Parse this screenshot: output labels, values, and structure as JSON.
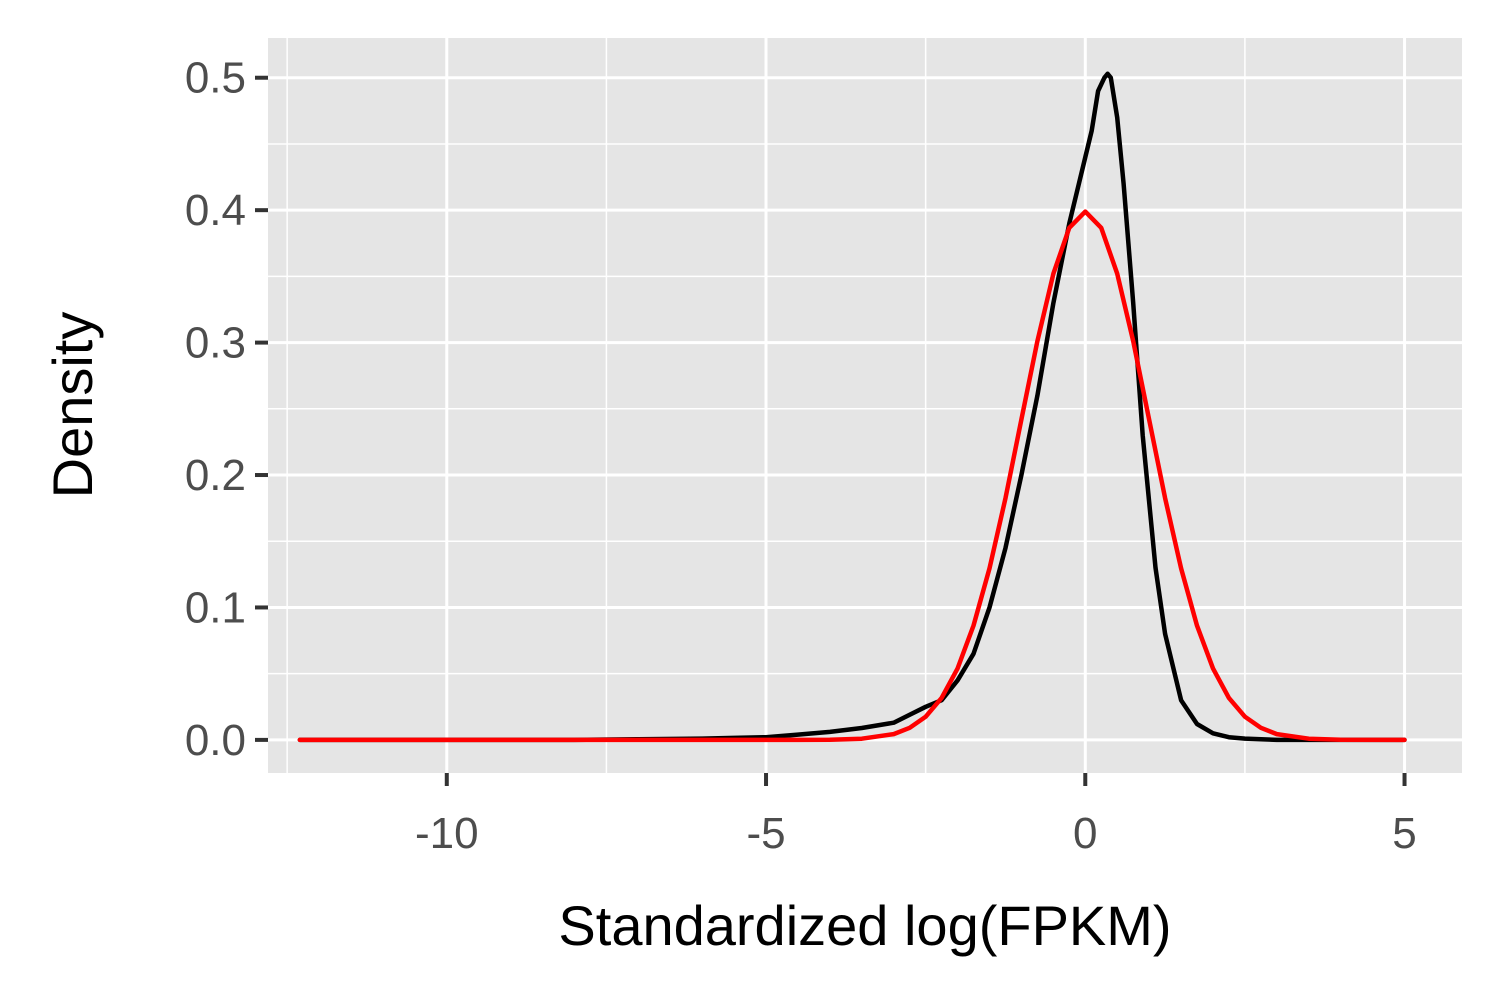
{
  "chart_data": {
    "type": "line",
    "title": "",
    "xlabel": "Standardized log(FPKM)",
    "ylabel": "Density",
    "xlim": [
      -12.8,
      5.9
    ],
    "ylim": [
      -0.025,
      0.53
    ],
    "x_ticks": [
      -10,
      -5,
      0,
      5
    ],
    "x_tick_labels": [
      "-10",
      "-5",
      "0",
      "5"
    ],
    "y_ticks": [
      0.0,
      0.1,
      0.2,
      0.3,
      0.4,
      0.5
    ],
    "y_tick_labels": [
      "0.0",
      "0.1",
      "0.2",
      "0.3",
      "0.4",
      "0.5"
    ],
    "grid": true,
    "legend": "none",
    "colors": {
      "panel_background": "#e5e5e5",
      "grid": "#ffffff",
      "empirical": "#000000",
      "normal": "#ff0000",
      "tick_text": "#4d4d4d"
    },
    "series": [
      {
        "color": "#000000",
        "x": [
          -12.3,
          -11,
          -10,
          -9,
          -8,
          -7,
          -6,
          -5.5,
          -5,
          -4.5,
          -4,
          -3.5,
          -3,
          -2.75,
          -2.5,
          -2.25,
          -2,
          -1.75,
          -1.5,
          -1.25,
          -1,
          -0.75,
          -0.5,
          -0.25,
          0,
          0.1,
          0.2,
          0.3,
          0.35,
          0.4,
          0.5,
          0.6,
          0.75,
          0.9,
          1,
          1.1,
          1.25,
          1.5,
          1.75,
          2,
          2.25,
          2.5,
          3,
          3.5,
          4,
          4.5,
          5
        ],
        "y": [
          0,
          0,
          0,
          0,
          0,
          0.0005,
          0.001,
          0.0015,
          0.002,
          0.004,
          0.006,
          0.009,
          0.013,
          0.019,
          0.025,
          0.03,
          0.045,
          0.065,
          0.1,
          0.145,
          0.2,
          0.26,
          0.33,
          0.39,
          0.44,
          0.46,
          0.49,
          0.5,
          0.503,
          0.5,
          0.47,
          0.42,
          0.33,
          0.23,
          0.18,
          0.13,
          0.08,
          0.03,
          0.012,
          0.005,
          0.002,
          0.001,
          0,
          0,
          0,
          0,
          0
        ]
      },
      {
        "color": "#ff0000",
        "x": [
          -12.3,
          -8,
          -6,
          -5,
          -4.5,
          -4,
          -3.5,
          -3,
          -2.75,
          -2.5,
          -2.25,
          -2,
          -1.75,
          -1.5,
          -1.25,
          -1,
          -0.75,
          -0.5,
          -0.25,
          0,
          0.25,
          0.5,
          0.75,
          1,
          1.25,
          1.5,
          1.75,
          2,
          2.25,
          2.5,
          2.75,
          3,
          3.5,
          4,
          5
        ],
        "y": [
          0,
          0,
          0,
          0,
          0,
          0.0001,
          0.0009,
          0.0044,
          0.0091,
          0.0175,
          0.0317,
          0.054,
          0.0863,
          0.1295,
          0.1826,
          0.242,
          0.3011,
          0.3521,
          0.3867,
          0.3989,
          0.3867,
          0.3521,
          0.3011,
          0.242,
          0.1826,
          0.1295,
          0.0863,
          0.054,
          0.0317,
          0.0175,
          0.0091,
          0.0044,
          0.0009,
          0.0001,
          0
        ]
      }
    ]
  }
}
